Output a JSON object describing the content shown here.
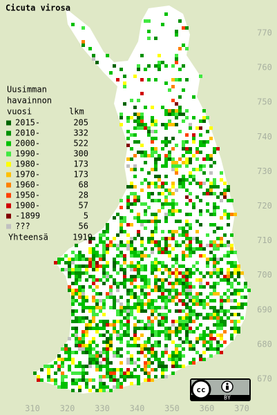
{
  "title": "Cicuta virosa",
  "legend": {
    "heading": [
      "Uusimman",
      "havainnon",
      "vuosi"
    ],
    "count_heading": "lkm",
    "rows": [
      {
        "label": "2015-",
        "count": 205,
        "color": "#006400"
      },
      {
        "label": "2010-",
        "count": 332,
        "color": "#009000"
      },
      {
        "label": "2000-",
        "count": 522,
        "color": "#00c000"
      },
      {
        "label": "1990-",
        "count": 300,
        "color": "#40e840"
      },
      {
        "label": "1980-",
        "count": 173,
        "color": "#ffff00"
      },
      {
        "label": "1970-",
        "count": 173,
        "color": "#ffc000"
      },
      {
        "label": "1960-",
        "count": 68,
        "color": "#ff8000"
      },
      {
        "label": "1950-",
        "count": 28,
        "color": "#ff4000"
      },
      {
        "label": "1900-",
        "count": 57,
        "color": "#d00000"
      },
      {
        "label": "-1899",
        "count": 5,
        "color": "#800000"
      },
      {
        "label": "???",
        "count": 56,
        "color": "#c0c0c0"
      }
    ],
    "total_label": "Yhteensä",
    "total": 1919
  },
  "x_labels": [
    310,
    320,
    330,
    340,
    350,
    360,
    370
  ],
  "y_labels": [
    670,
    680,
    690,
    700,
    710,
    720,
    730,
    740,
    750,
    760,
    770
  ],
  "license": {
    "cc": "cc",
    "by": "BY"
  }
}
